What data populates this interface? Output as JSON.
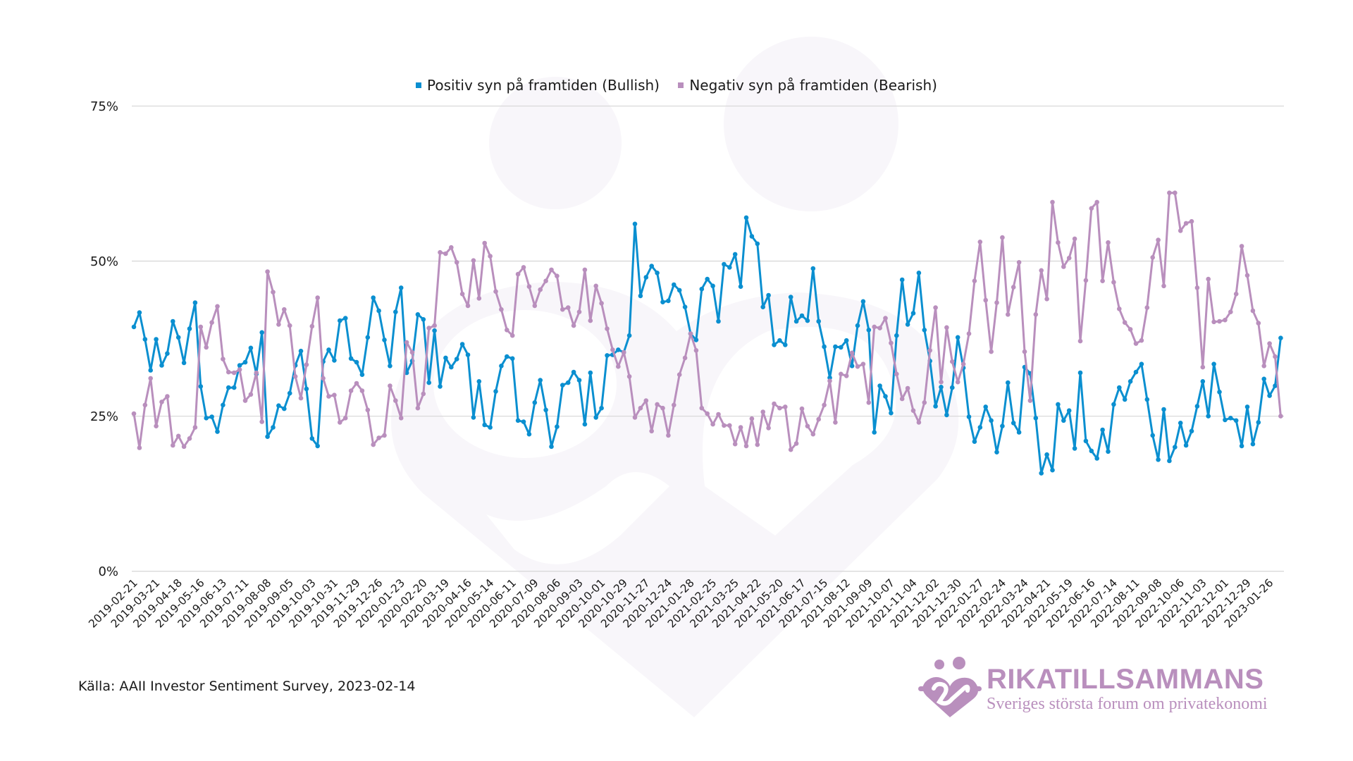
{
  "legend": [
    {
      "label": "Positiv syn på framtiden (Bullish)",
      "color": "#0a8fd0"
    },
    {
      "label": "Negativ syn på framtiden (Bearish)",
      "color": "#b98fbd"
    }
  ],
  "source": "Källa: AAII Investor Sentiment Survey, 2023-02-14",
  "logo": {
    "title": "RIKATILLSAMMANS",
    "subtitle": "Sveriges största forum om privatekonomi",
    "color": "#b98fbd"
  },
  "chart_data": {
    "type": "line",
    "title": "",
    "xlabel": "",
    "ylabel": "",
    "ylim": [
      0,
      75
    ],
    "yticks": [
      0,
      25,
      50,
      75
    ],
    "ytick_labels": [
      "0%",
      "25%",
      "50%",
      "75%"
    ],
    "grid": true,
    "legend_position": "top-center",
    "x_start": "2019-02-21",
    "x_frequency": "weekly",
    "x_tick_every": 4,
    "x_tick_labels": [
      "2019-02-21",
      "2019-03-21",
      "2019-04-18",
      "2019-05-16",
      "2019-06-13",
      "2019-07-11",
      "2019-08-08",
      "2019-09-05",
      "2019-10-03",
      "2019-10-31",
      "2019-11-29",
      "2019-12-26",
      "2020-01-23",
      "2020-02-20",
      "2020-03-19",
      "2020-04-16",
      "2020-05-14",
      "2020-06-11",
      "2020-07-09",
      "2020-08-06",
      "2020-09-03",
      "2020-10-01",
      "2020-10-29",
      "2020-11-27",
      "2020-12-24",
      "2021-01-28",
      "2021-02-25",
      "2021-03-25",
      "2021-04-22",
      "2021-05-20",
      "2021-06-17",
      "2021-07-15",
      "2021-08-12",
      "2021-09-09",
      "2021-10-07",
      "2021-11-04",
      "2021-12-02",
      "2021-12-30",
      "2022-01-27",
      "2022-02-24",
      "2022-03-24",
      "2022-04-21",
      "2022-05-19",
      "2022-06-16",
      "2022-07-14",
      "2022-08-11",
      "2022-09-08",
      "2022-10-06",
      "2022-11-03",
      "2022-12-01",
      "2022-12-29",
      "2023-01-26"
    ],
    "series": [
      {
        "name": "Positiv syn på framtiden (Bullish)",
        "color": "#0a8fd0",
        "values": [
          39.4,
          41.7,
          37.4,
          32.4,
          37.4,
          33.2,
          35.1,
          40.3,
          37.7,
          33.6,
          39.1,
          43.3,
          29.8,
          24.7,
          24.9,
          22.5,
          26.8,
          29.6,
          29.6,
          33.2,
          33.7,
          36.0,
          31.8,
          38.5,
          21.7,
          23.2,
          26.7,
          26.2,
          28.7,
          33.2,
          35.5,
          29.4,
          21.4,
          20.2,
          33.8,
          35.7,
          34.0,
          40.4,
          40.8,
          34.3,
          33.7,
          31.7,
          37.7,
          44.1,
          42.0,
          37.3,
          33.1,
          41.8,
          45.7,
          32.0,
          33.9,
          41.4,
          40.6,
          30.4,
          38.8,
          29.8,
          34.4,
          32.9,
          34.2,
          36.6,
          34.9,
          24.8,
          30.6,
          23.6,
          23.2,
          29.0,
          33.1,
          34.6,
          34.3,
          24.3,
          24.1,
          22.1,
          27.2,
          30.8,
          26.0,
          20.1,
          23.3,
          30.0,
          30.4,
          32.1,
          30.8,
          23.7,
          32.0,
          24.8,
          26.3,
          34.8,
          34.9,
          35.7,
          35.3,
          38.0,
          56.0,
          44.4,
          47.4,
          49.2,
          48.1,
          43.4,
          43.6,
          46.2,
          45.3,
          42.6,
          38.3,
          37.3,
          45.5,
          47.1,
          46.0,
          40.3,
          49.5,
          49.0,
          51.1,
          45.9,
          57.0,
          54.0,
          52.8,
          42.6,
          44.5,
          36.5,
          37.2,
          36.5,
          44.2,
          40.3,
          41.2,
          40.4,
          48.8,
          40.3,
          36.2,
          31.2,
          36.2,
          36.1,
          37.2,
          33.1,
          39.6,
          43.5,
          38.9,
          22.4,
          29.9,
          28.2,
          25.5,
          38.0,
          47.0,
          39.8,
          41.6,
          48.1,
          38.9,
          33.9,
          26.6,
          29.7,
          25.2,
          29.6,
          37.7,
          32.8,
          24.9,
          20.9,
          23.2,
          26.5,
          24.3,
          19.2,
          23.4,
          30.4,
          23.9,
          22.4,
          32.9,
          31.9,
          24.7,
          15.8,
          18.8,
          16.3,
          26.9,
          24.3,
          25.9,
          19.8,
          32.0,
          21.0,
          19.4,
          18.2,
          22.8,
          19.3,
          26.9,
          29.6,
          27.7,
          30.6,
          32.1,
          33.4,
          27.7,
          21.9,
          18.0,
          26.1,
          17.8,
          20.0,
          23.9,
          20.3,
          22.6,
          26.6,
          30.6,
          25.0,
          33.4,
          28.9,
          24.4,
          24.7,
          24.3,
          20.2,
          26.5,
          20.5,
          24.0,
          31.0,
          28.3,
          29.9,
          37.6
        ]
      },
      {
        "name": "Negativ syn på framtiden (Bearish)",
        "color": "#b98fbd",
        "values": [
          25.4,
          19.9,
          26.8,
          31.1,
          23.4,
          27.3,
          28.2,
          20.3,
          21.8,
          20.1,
          21.4,
          23.2,
          39.4,
          36.1,
          40.1,
          42.7,
          34.2,
          32.1,
          32.0,
          32.5,
          27.5,
          28.5,
          32.0,
          24.1,
          48.3,
          45.0,
          39.8,
          42.2,
          39.6,
          31.4,
          27.9,
          33.3,
          39.5,
          44.1,
          31.1,
          28.2,
          28.4,
          24.0,
          24.7,
          29.1,
          30.3,
          29.1,
          26.0,
          20.4,
          21.5,
          21.9,
          29.9,
          27.5,
          24.7,
          36.9,
          35.3,
          26.3,
          28.6,
          39.2,
          39.6,
          51.4,
          51.2,
          52.2,
          49.8,
          44.7,
          42.8,
          50.1,
          44.0,
          52.9,
          50.8,
          45.1,
          42.2,
          38.9,
          38.0,
          47.9,
          49.0,
          45.9,
          42.8,
          45.4,
          46.8,
          48.6,
          47.6,
          42.2,
          42.5,
          39.6,
          41.8,
          48.6,
          40.4,
          46.0,
          43.2,
          39.1,
          35.7,
          33.0,
          35.3,
          31.4,
          24.8,
          26.3,
          27.5,
          22.6,
          26.9,
          26.3,
          21.9,
          26.8,
          31.7,
          34.4,
          38.3,
          35.6,
          26.3,
          25.4,
          23.7,
          25.3,
          23.5,
          23.5,
          20.5,
          23.2,
          20.2,
          24.6,
          20.4,
          25.7,
          23.1,
          27.0,
          26.3,
          26.5,
          19.6,
          20.6,
          26.2,
          23.4,
          22.1,
          24.5,
          26.8,
          30.7,
          24.0,
          31.8,
          31.5,
          35.2,
          33.0,
          33.4,
          27.2,
          39.4,
          39.2,
          40.8,
          36.8,
          31.8,
          27.8,
          29.5,
          25.9,
          24.0,
          27.2,
          35.6,
          42.5,
          30.5,
          39.3,
          33.8,
          30.5,
          33.4,
          38.3,
          46.8,
          53.1,
          43.7,
          35.4,
          43.3,
          53.8,
          41.4,
          45.8,
          49.8,
          35.4,
          27.5,
          41.4,
          48.5,
          43.9,
          59.5,
          53.0,
          49.1,
          50.5,
          53.6,
          37.1,
          46.9,
          58.5,
          59.5,
          46.8,
          53.0,
          46.6,
          42.3,
          40.1,
          39.0,
          36.7,
          37.2,
          42.5,
          50.6,
          53.4,
          46.0,
          61.0,
          61.0,
          54.9,
          56.1,
          56.4,
          45.7,
          32.9,
          47.1,
          40.2,
          40.3,
          40.5,
          41.8,
          44.7,
          52.4,
          47.7,
          42.0,
          40.0,
          33.1,
          36.7,
          34.6,
          25.0
        ]
      }
    ]
  }
}
